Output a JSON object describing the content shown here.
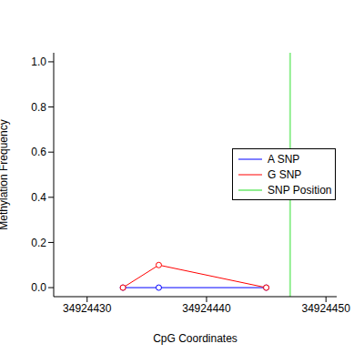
{
  "chart_data": {
    "type": "line",
    "xlabel": "CpG Coordinates",
    "ylabel": "Methylation Frequency",
    "x": [
      34924433,
      34924436,
      34924445
    ],
    "series": [
      {
        "name": "A SNP",
        "color": "#0000ff",
        "values": [
          0,
          0,
          0
        ],
        "marker": "circle"
      },
      {
        "name": "G SNP",
        "color": "#ff0000",
        "values": [
          0,
          0.1,
          0
        ],
        "marker": "circle"
      }
    ],
    "vlines": [
      {
        "name": "SNP Position",
        "color": "#90ee90",
        "x": 34924447
      }
    ],
    "xlim": [
      34924427.2,
      34924450.9
    ],
    "xticks": [
      34924430,
      34924440,
      34924450
    ],
    "ylim": [
      -0.04,
      1.04
    ],
    "yticks": [
      {
        "value": 0,
        "label": "0.0"
      },
      0.2,
      0.4,
      0.6,
      0.8,
      {
        "value": 1,
        "label": "1.0"
      }
    ],
    "legend": "right",
    "grid": false
  }
}
